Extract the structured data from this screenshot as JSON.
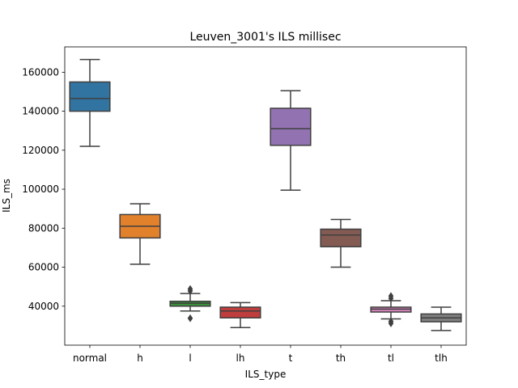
{
  "chart_data": {
    "type": "box",
    "title": "Leuven_3001's ILS millisec",
    "xlabel": "ILS_type",
    "ylabel": "ILS_ms",
    "ylim": [
      20000,
      173000
    ],
    "yticks": [
      40000,
      60000,
      80000,
      100000,
      120000,
      140000,
      160000
    ],
    "ytick_labels": [
      "40000",
      "60000",
      "80000",
      "100000",
      "120000",
      "140000",
      "160000"
    ],
    "grid": false,
    "categories": [
      "normal",
      "h",
      "l",
      "lh",
      "t",
      "th",
      "tl",
      "tlh"
    ],
    "boxes": [
      {
        "category": "normal",
        "whisker_low": 122000,
        "q1": 140000,
        "median": 146500,
        "q3": 155000,
        "whisker_high": 166500,
        "outliers": [],
        "color": "#3274a1"
      },
      {
        "category": "h",
        "whisker_low": 61500,
        "q1": 75000,
        "median": 81000,
        "q3": 87000,
        "whisker_high": 92500,
        "outliers": [],
        "color": "#e1812c"
      },
      {
        "category": "l",
        "whisker_low": 37500,
        "q1": 40000,
        "median": 41500,
        "q3": 42500,
        "whisker_high": 46500,
        "outliers": [
          33800,
          47800,
          48800
        ],
        "color": "#3a923a"
      },
      {
        "category": "lh",
        "whisker_low": 29000,
        "q1": 34000,
        "median": 37500,
        "q3": 39500,
        "whisker_high": 41800,
        "outliers": [],
        "color": "#c03d3e"
      },
      {
        "category": "t",
        "whisker_low": 99500,
        "q1": 122500,
        "median": 131000,
        "q3": 141500,
        "whisker_high": 150500,
        "outliers": [],
        "color": "#9372b2"
      },
      {
        "category": "th",
        "whisker_low": 60000,
        "q1": 70500,
        "median": 76500,
        "q3": 79500,
        "whisker_high": 84500,
        "outliers": [],
        "color": "#845b53"
      },
      {
        "category": "tl",
        "whisker_low": 33500,
        "q1": 37000,
        "median": 38500,
        "q3": 39500,
        "whisker_high": 42800,
        "outliers": [
          31200,
          32200,
          44000,
          45200
        ],
        "color": "#d684bd"
      },
      {
        "category": "tlh",
        "whisker_low": 27500,
        "q1": 32000,
        "median": 34000,
        "q3": 36000,
        "whisker_high": 39500,
        "outliers": [],
        "color": "#7f7f7f"
      }
    ]
  }
}
